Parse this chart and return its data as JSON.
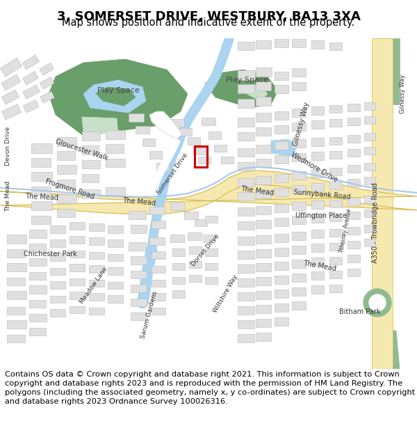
{
  "title": "3, SOMERSET DRIVE, WESTBURY, BA13 3XA",
  "subtitle": "Map shows position and indicative extent of the property.",
  "footer": "Contains OS data © Crown copyright and database right 2021. This information is subject to Crown copyright and database rights 2023 and is reproduced with the permission of HM Land Registry. The polygons (including the associated geometry, namely x, y co-ordinates) are subject to Crown copyright and database rights 2023 Ordnance Survey 100026316.",
  "bg_color": "#ffffff",
  "road_main_color": "#f5e9b0",
  "road_edge_color": "#d4b84a",
  "road_white_color": "#ffffff",
  "road_blue_edge": "#a8c8e8",
  "water_color": "#aad4f0",
  "green_color": "#8fbb8f",
  "green_light": "#c8e0c8",
  "green_dark": "#6a9e6a",
  "green_stripe": "#a8d4a8",
  "building_color": "#e0e0e0",
  "building_outline": "#b8b8b8",
  "red_box_color": "#cc0000",
  "title_fontsize": 13,
  "subtitle_fontsize": 10.5,
  "footer_fontsize": 8.2,
  "figsize": [
    6.0,
    6.25
  ],
  "dpi": 100
}
